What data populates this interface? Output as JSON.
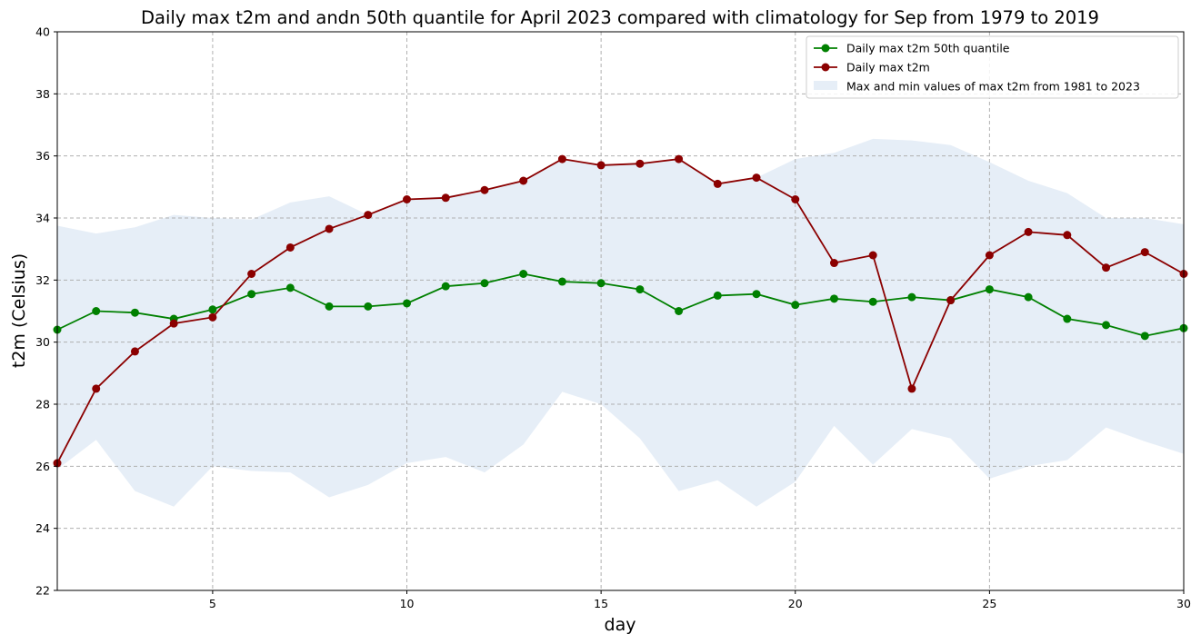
{
  "chart_data": {
    "type": "line",
    "title": "Daily max t2m and andn 50th quantile for April 2023 compared with climatology for Sep from 1979 to 2019",
    "xlabel": "day",
    "ylabel": "t2m (Celsius)",
    "xlim": [
      1,
      30
    ],
    "ylim": [
      22,
      40
    ],
    "x_ticks": [
      5,
      10,
      15,
      20,
      25,
      30
    ],
    "y_ticks": [
      22,
      24,
      26,
      28,
      30,
      32,
      34,
      36,
      38,
      40
    ],
    "grid": true,
    "legend_position": "top-right",
    "x": [
      1,
      2,
      3,
      4,
      5,
      6,
      7,
      8,
      9,
      10,
      11,
      12,
      13,
      14,
      15,
      16,
      17,
      18,
      19,
      20,
      21,
      22,
      23,
      24,
      25,
      26,
      27,
      28,
      29,
      30
    ],
    "series": [
      {
        "name": "Daily max t2m 50th quantile",
        "color": "#008000",
        "marker": "circle",
        "values": [
          30.4,
          31.0,
          30.95,
          30.75,
          31.05,
          31.55,
          31.75,
          31.15,
          31.15,
          31.25,
          31.8,
          31.9,
          32.2,
          31.95,
          31.9,
          31.7,
          31.0,
          31.5,
          31.55,
          31.2,
          31.4,
          31.3,
          31.45,
          31.35,
          31.7,
          31.45,
          30.75,
          30.55,
          30.2,
          30.45
        ]
      },
      {
        "name": "Daily max t2m",
        "color": "#8b0000",
        "marker": "circle",
        "values": [
          26.1,
          28.5,
          29.7,
          30.6,
          30.8,
          32.2,
          33.05,
          33.65,
          34.1,
          34.6,
          34.65,
          34.9,
          35.2,
          35.9,
          35.7,
          35.75,
          35.9,
          35.1,
          35.3,
          34.6,
          32.55,
          32.8,
          28.5,
          31.35,
          32.8,
          33.55,
          33.45,
          32.4,
          32.9,
          32.2
        ]
      }
    ],
    "band": {
      "name": "Max and min values of max t2m from 1981 to 2023",
      "color": "#e6eef7",
      "upper": [
        33.75,
        33.5,
        33.7,
        34.1,
        34.0,
        33.95,
        34.5,
        34.7,
        34.1,
        34.6,
        34.7,
        34.9,
        35.2,
        35.9,
        35.7,
        35.75,
        35.9,
        35.1,
        35.3,
        35.9,
        36.1,
        36.55,
        36.5,
        36.35,
        35.8,
        35.2,
        34.8,
        34.0,
        34.0,
        33.8
      ],
      "lower": [
        25.9,
        26.85,
        25.2,
        24.7,
        26.0,
        25.85,
        25.8,
        25.0,
        25.4,
        26.1,
        26.3,
        25.8,
        26.7,
        28.4,
        28.0,
        26.9,
        25.2,
        25.55,
        24.7,
        25.5,
        27.3,
        26.05,
        27.2,
        26.9,
        25.6,
        26.0,
        26.2,
        27.25,
        26.8,
        26.4
      ]
    }
  }
}
